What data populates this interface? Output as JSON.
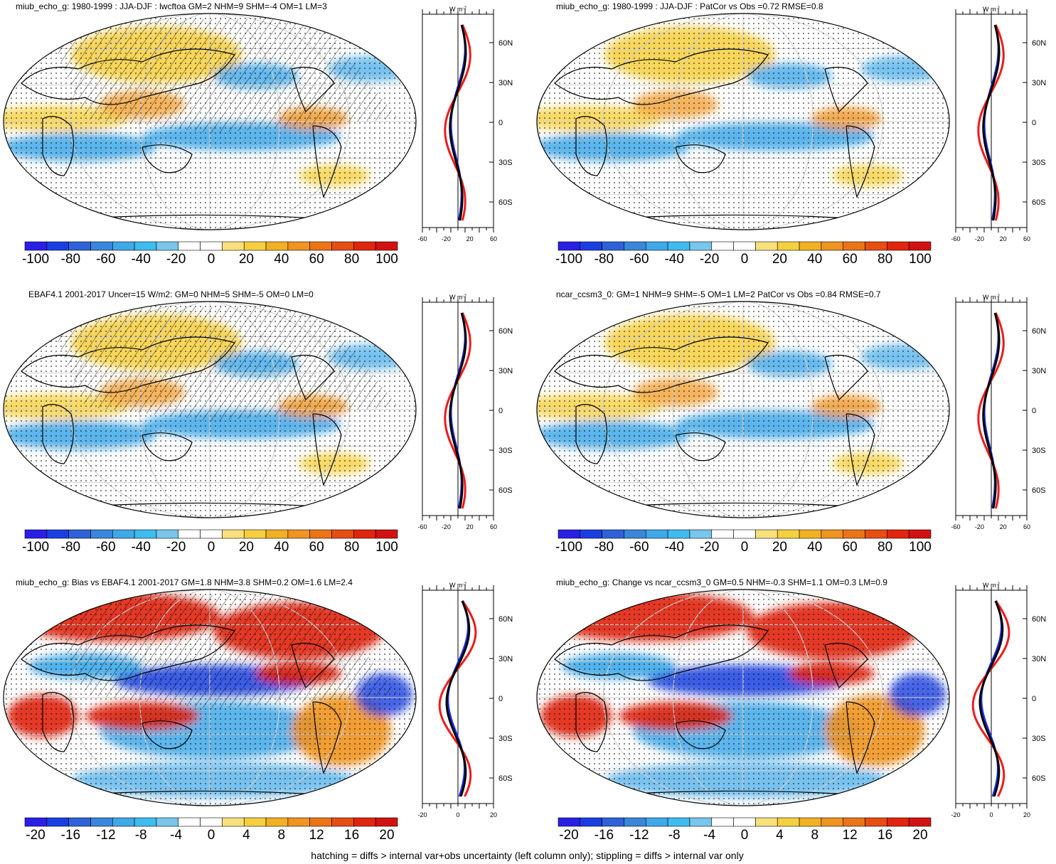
{
  "footnote": "hatching = diffs > internal var+obs uncertainty (left column only); stippling = diffs > internal var only",
  "units": {
    "w": "W m",
    "exp": "-2"
  },
  "lat_labels": [
    "60N",
    "30N",
    "0",
    "30S",
    "60S"
  ],
  "colors": {
    "scale": [
      "#2a1fe6",
      "#1a3fe0",
      "#2e62d8",
      "#3a86da",
      "#3fa8e8",
      "#3ebcf0",
      "#78c6ec",
      "#ffffff",
      "#ffffff",
      "#f9e07c",
      "#f6cf40",
      "#f2b124",
      "#ef9420",
      "#ec7418",
      "#e64e12",
      "#e0260c",
      "#d21210"
    ],
    "zonal_blue": "#1a2ee0",
    "zonal_red": "#ee1a1a",
    "zonal_black": "#000000"
  },
  "panels": [
    {
      "title": "miub_echo_g: 1980-1999 : JJA-DJF : lwcftoa GM=2 NHM=9 SHM=-4 OM=1 LM=3",
      "cb_labels": [
        "-100",
        "-80",
        "-60",
        "-40",
        "-20",
        "0",
        "20",
        "40",
        "60",
        "80",
        "100"
      ],
      "zonal_ticks": [
        "-60",
        "-20",
        "20",
        "60"
      ],
      "hatching": true,
      "strength": "moderate"
    },
    {
      "title": "miub_echo_g: 1980-1999 : JJA-DJF : PatCor vs Obs =0.72 RMSE=0.8",
      "cb_labels": [
        "-100",
        "-80",
        "-60",
        "-40",
        "-20",
        "0",
        "20",
        "40",
        "60",
        "80",
        "100"
      ],
      "zonal_ticks": [
        "-60",
        "-20",
        "20",
        "60"
      ],
      "hatching": false,
      "strength": "moderate"
    },
    {
      "title": "EBAF4.1 2001-2017 Uncer=15 W/m2: GM=0 NHM=5 SHM=-5 OM=0 LM=0",
      "cb_labels": [
        "-100",
        "-80",
        "-60",
        "-40",
        "-20",
        "0",
        "20",
        "40",
        "60",
        "80",
        "100"
      ],
      "zonal_ticks": [
        "-60",
        "-20",
        "20",
        "60"
      ],
      "hatching": true,
      "strength": "moderate"
    },
    {
      "title": "ncar_ccsm3_0: GM=1 NHM=9 SHM=-5 OM=1 LM=2 PatCor vs Obs =0.84 RMSE=0.7",
      "cb_labels": [
        "-100",
        "-80",
        "-60",
        "-40",
        "-20",
        "0",
        "20",
        "40",
        "60",
        "80",
        "100"
      ],
      "zonal_ticks": [
        "-60",
        "-20",
        "20",
        "60"
      ],
      "hatching": false,
      "strength": "moderate"
    },
    {
      "title": "miub_echo_g: Bias vs EBAF4.1 2001-2017 GM=1.8 NHM=3.8 SHM=0.2 OM=1.6 LM=2.4",
      "cb_labels": [
        "-20",
        "-16",
        "-12",
        "-8",
        "-4",
        "0",
        "4",
        "8",
        "12",
        "16",
        "20"
      ],
      "zonal_ticks": [
        "-20",
        "0",
        "20"
      ],
      "hatching": true,
      "strength": "strong"
    },
    {
      "title": "miub_echo_g: Change vs ncar_ccsm3_0 GM=0.5 NHM=-0.3 SHM=1.1 OM=0.3 LM=0.9",
      "cb_labels": [
        "-20",
        "-16",
        "-12",
        "-8",
        "-4",
        "0",
        "4",
        "8",
        "12",
        "16",
        "20"
      ],
      "zonal_ticks": [
        "-20",
        "0",
        "20"
      ],
      "hatching": false,
      "strength": "strong"
    }
  ]
}
